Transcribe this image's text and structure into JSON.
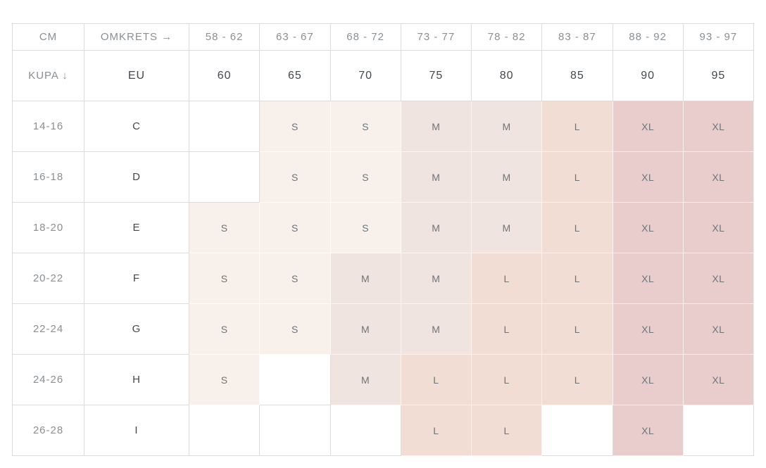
{
  "table": {
    "corner_top_label": "CM",
    "corner_bottom_label": "KUPA ↓",
    "axis_label": "OMKRETS →",
    "eu_label": "EU",
    "circumference_ranges": [
      "58 - 62",
      "63 - 67",
      "68 - 72",
      "73 - 77",
      "78 - 82",
      "83 - 87",
      "88 - 92",
      "93 - 97"
    ],
    "eu_sizes": [
      "60",
      "65",
      "70",
      "75",
      "80",
      "85",
      "90",
      "95"
    ],
    "rows": [
      {
        "cup_range": "14-16",
        "cup": "C",
        "sizes": [
          "",
          "S",
          "S",
          "M",
          "M",
          "L",
          "XL",
          "XL"
        ]
      },
      {
        "cup_range": "16-18",
        "cup": "D",
        "sizes": [
          "",
          "S",
          "S",
          "M",
          "M",
          "L",
          "XL",
          "XL"
        ]
      },
      {
        "cup_range": "18-20",
        "cup": "E",
        "sizes": [
          "S",
          "S",
          "S",
          "M",
          "M",
          "L",
          "XL",
          "XL"
        ]
      },
      {
        "cup_range": "20-22",
        "cup": "F",
        "sizes": [
          "S",
          "S",
          "M",
          "M",
          "L",
          "L",
          "XL",
          "XL"
        ]
      },
      {
        "cup_range": "22-24",
        "cup": "G",
        "sizes": [
          "S",
          "S",
          "M",
          "M",
          "L",
          "L",
          "XL",
          "XL"
        ]
      },
      {
        "cup_range": "24-26",
        "cup": "H",
        "sizes": [
          "S",
          "",
          "M",
          "L",
          "L",
          "L",
          "XL",
          "XL"
        ]
      },
      {
        "cup_range": "26-28",
        "cup": "I",
        "sizes": [
          "",
          "",
          "",
          "L",
          "L",
          "",
          "XL",
          ""
        ]
      }
    ],
    "size_colors": {
      "S": "#f8f0ea",
      "M": "#f0e4e1",
      "L": "#f2ddd5",
      "XL": "#e9cdcc"
    },
    "border_color": "#dedcda",
    "muted_text_color": "#8a8f94",
    "dark_text_color": "#42484e",
    "size_text_color": "#6e747a"
  }
}
